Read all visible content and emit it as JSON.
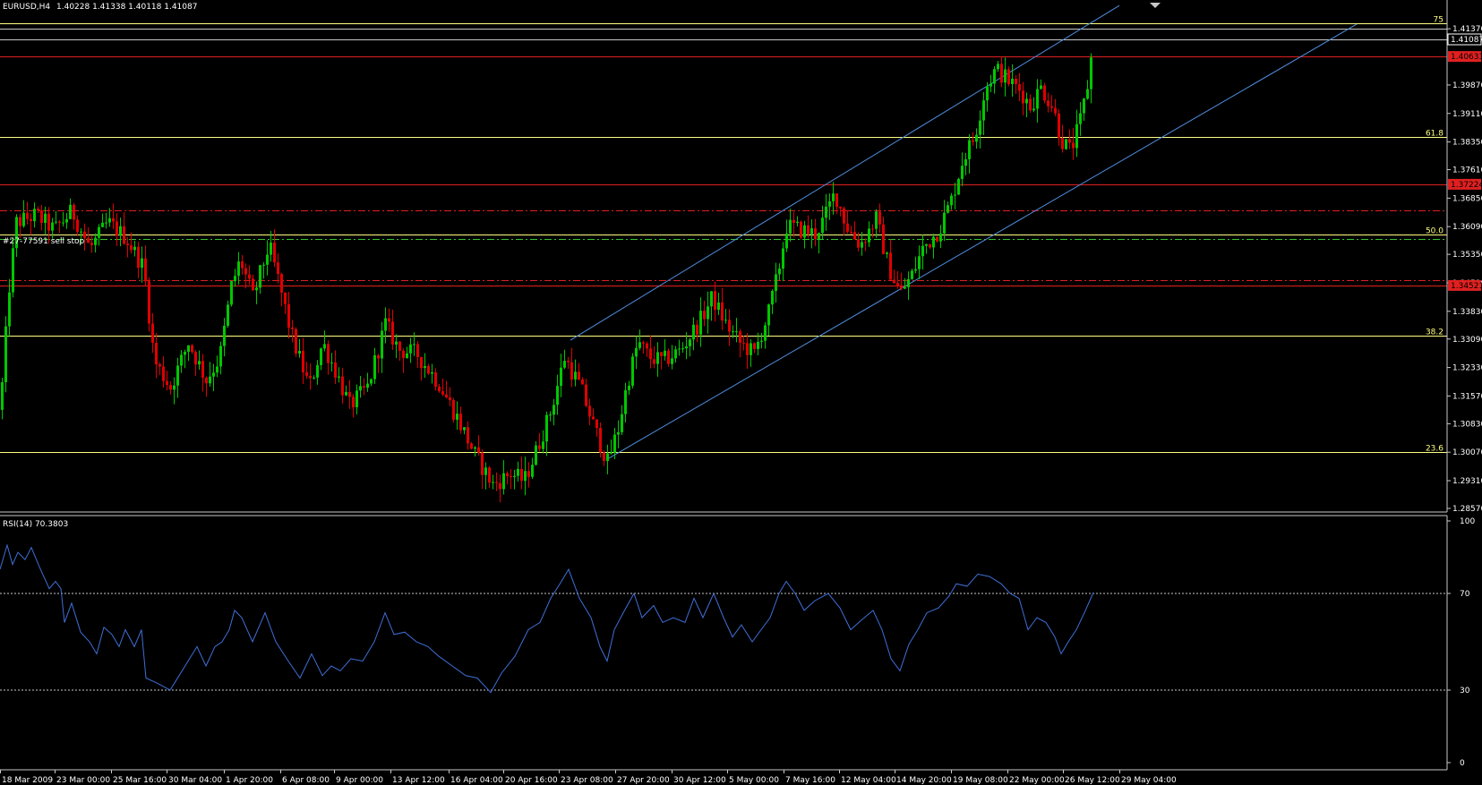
{
  "header": {
    "symbol": "EURUSD,H4",
    "ohlc": "1.40228 1.41338 1.40118 1.41087"
  },
  "colors": {
    "background": "#000000",
    "bull": "#00c800",
    "bear": "#e00000",
    "text": "#ffffff",
    "grid_axis": "#c8c8c8",
    "fibo": "#ffff80",
    "channel": "#4f8fe0",
    "rsi_line": "#3f6fd8",
    "red_level": "#e02020"
  },
  "chart_data": [
    {
      "type": "candlestick",
      "title": "EURUSD,H4",
      "ylim": [
        1.2857,
        1.4166
      ],
      "y_ticks": [
        "1.41370",
        "1.39870",
        "1.39110",
        "1.38350",
        "1.37610",
        "1.36850",
        "1.36090",
        "1.35350",
        "1.34590",
        "1.33830",
        "1.33090",
        "1.32330",
        "1.31570",
        "1.30830",
        "1.30070",
        "1.29310",
        "1.28570"
      ],
      "x_ticks": [
        "18 Mar 2009",
        "23 Mar 00:00",
        "25 Mar 16:00",
        "30 Mar 04:00",
        "1 Apr 20:00",
        "6 Apr 08:00",
        "9 Apr 00:00",
        "13 Apr 12:00",
        "16 Apr 04:00",
        "20 Apr 16:00",
        "23 Apr 08:00",
        "27 Apr 20:00",
        "30 Apr 12:00",
        "5 May 00:00",
        "7 May 16:00",
        "12 May 04:00",
        "14 May 20:00",
        "19 May 08:00",
        "22 May 00:00",
        "26 May 12:00",
        "29 May 04:00"
      ],
      "price_path": [
        [
          0,
          1.312
        ],
        [
          10,
          1.345
        ],
        [
          18,
          1.362
        ],
        [
          40,
          1.364
        ],
        [
          60,
          1.36
        ],
        [
          80,
          1.365
        ],
        [
          100,
          1.355
        ],
        [
          120,
          1.362
        ],
        [
          140,
          1.358
        ],
        [
          160,
          1.35
        ],
        [
          172,
          1.325
        ],
        [
          190,
          1.318
        ],
        [
          210,
          1.33
        ],
        [
          230,
          1.32
        ],
        [
          245,
          1.326
        ],
        [
          258,
          1.345
        ],
        [
          268,
          1.352
        ],
        [
          282,
          1.342
        ],
        [
          300,
          1.356
        ],
        [
          312,
          1.345
        ],
        [
          325,
          1.332
        ],
        [
          345,
          1.318
        ],
        [
          360,
          1.33
        ],
        [
          375,
          1.322
        ],
        [
          390,
          1.313
        ],
        [
          410,
          1.318
        ],
        [
          430,
          1.335
        ],
        [
          445,
          1.328
        ],
        [
          465,
          1.327
        ],
        [
          490,
          1.319
        ],
        [
          510,
          1.31
        ],
        [
          530,
          1.3
        ],
        [
          550,
          1.292
        ],
        [
          570,
          1.295
        ],
        [
          585,
          1.293
        ],
        [
          600,
          1.302
        ],
        [
          615,
          1.312
        ],
        [
          630,
          1.326
        ],
        [
          648,
          1.318
        ],
        [
          662,
          1.308
        ],
        [
          678,
          1.298
        ],
        [
          690,
          1.307
        ],
        [
          700,
          1.319
        ],
        [
          712,
          1.33
        ],
        [
          725,
          1.326
        ],
        [
          740,
          1.325
        ],
        [
          760,
          1.328
        ],
        [
          782,
          1.336
        ],
        [
          795,
          1.342
        ],
        [
          810,
          1.335
        ],
        [
          825,
          1.33
        ],
        [
          842,
          1.327
        ],
        [
          858,
          1.338
        ],
        [
          868,
          1.348
        ],
        [
          878,
          1.361
        ],
        [
          895,
          1.36
        ],
        [
          910,
          1.359
        ],
        [
          920,
          1.363
        ],
        [
          932,
          1.37
        ],
        [
          945,
          1.361
        ],
        [
          960,
          1.356
        ],
        [
          978,
          1.363
        ],
        [
          992,
          1.35
        ],
        [
          1005,
          1.343
        ],
        [
          1018,
          1.348
        ],
        [
          1030,
          1.355
        ],
        [
          1048,
          1.36
        ],
        [
          1062,
          1.368
        ],
        [
          1075,
          1.379
        ],
        [
          1088,
          1.385
        ],
        [
          1100,
          1.398
        ],
        [
          1112,
          1.403
        ],
        [
          1125,
          1.4
        ],
        [
          1140,
          1.397
        ],
        [
          1150,
          1.393
        ],
        [
          1162,
          1.398
        ],
        [
          1175,
          1.393
        ],
        [
          1185,
          1.384
        ],
        [
          1195,
          1.381
        ],
        [
          1205,
          1.388
        ],
        [
          1213,
          1.397
        ],
        [
          1221,
          1.4109
        ]
      ],
      "horizontal_lines": [
        {
          "price": 1.4137,
          "style": "solid",
          "color": "#c8c8c8"
        },
        {
          "price": 1.41087,
          "style": "solid",
          "color": "#c8c8c8",
          "label": "1.41087"
        },
        {
          "price": 1.4063,
          "style": "solid",
          "color": "#e02020",
          "label": "1.40633"
        },
        {
          "price": 1.3722,
          "style": "solid",
          "color": "#e02020",
          "label": "1.37224"
        },
        {
          "price": 1.3652,
          "style": "dashdot",
          "color": "#e02020"
        },
        {
          "price": 1.3575,
          "style": "dashdot",
          "color": "#2ec82e"
        },
        {
          "price": 1.3465,
          "style": "dashdot",
          "color": "#e02020"
        },
        {
          "price": 1.3452,
          "style": "solid",
          "color": "#e02020",
          "label": "1.34521"
        }
      ],
      "fibo_levels": [
        {
          "label": "75",
          "price": 1.4152
        },
        {
          "label": "61.8",
          "price": 1.3848
        },
        {
          "label": "50.0",
          "price": 1.3589
        },
        {
          "label": "38.2",
          "price": 1.3319
        },
        {
          "label": "23.6",
          "price": 1.3007
        }
      ],
      "order_label": "#27-77591 sell stop",
      "channel": {
        "upper": [
          [
            637,
            1.3306
          ],
          [
            1250,
            1.4199
          ]
        ],
        "lower": [
          [
            680,
            1.2991
          ],
          [
            1515,
            1.4149
          ]
        ]
      }
    },
    {
      "type": "line",
      "title": "RSI(14) 70.3803",
      "ylim": [
        0,
        100
      ],
      "y_ticks": [
        "100",
        "70",
        "30",
        "0"
      ],
      "levels": [
        70,
        30
      ],
      "series": [
        {
          "name": "RSI(14)",
          "points": [
            [
              0,
              80
            ],
            [
              8,
              90
            ],
            [
              14,
              82
            ],
            [
              20,
              87
            ],
            [
              28,
              84
            ],
            [
              35,
              89
            ],
            [
              44,
              81
            ],
            [
              55,
              72
            ],
            [
              62,
              75
            ],
            [
              68,
              72
            ],
            [
              72,
              58
            ],
            [
              80,
              66
            ],
            [
              90,
              54
            ],
            [
              100,
              50
            ],
            [
              108,
              45
            ],
            [
              116,
              56
            ],
            [
              125,
              53
            ],
            [
              133,
              48
            ],
            [
              140,
              55
            ],
            [
              150,
              48
            ],
            [
              158,
              55
            ],
            [
              163,
              35
            ],
            [
              175,
              33
            ],
            [
              190,
              30
            ],
            [
              200,
              36
            ],
            [
              210,
              42
            ],
            [
              220,
              48
            ],
            [
              230,
              40
            ],
            [
              240,
              48
            ],
            [
              248,
              50
            ],
            [
              256,
              55
            ],
            [
              262,
              63
            ],
            [
              270,
              60
            ],
            [
              282,
              50
            ],
            [
              296,
              62
            ],
            [
              308,
              50
            ],
            [
              322,
              42
            ],
            [
              335,
              35
            ],
            [
              348,
              45
            ],
            [
              360,
              36
            ],
            [
              370,
              40
            ],
            [
              380,
              38
            ],
            [
              392,
              43
            ],
            [
              405,
              42
            ],
            [
              418,
              50
            ],
            [
              430,
              62
            ],
            [
              440,
              53
            ],
            [
              452,
              54
            ],
            [
              465,
              50
            ],
            [
              478,
              48
            ],
            [
              490,
              44
            ],
            [
              505,
              40
            ],
            [
              520,
              36
            ],
            [
              533,
              35
            ],
            [
              548,
              29
            ],
            [
              560,
              37
            ],
            [
              575,
              44
            ],
            [
              590,
              55
            ],
            [
              603,
              58
            ],
            [
              615,
              68
            ],
            [
              627,
              75
            ],
            [
              635,
              80
            ],
            [
              647,
              68
            ],
            [
              660,
              60
            ],
            [
              670,
              48
            ],
            [
              678,
              42
            ],
            [
              686,
              55
            ],
            [
              696,
              62
            ],
            [
              708,
              70
            ],
            [
              717,
              60
            ],
            [
              730,
              65
            ],
            [
              740,
              58
            ],
            [
              752,
              60
            ],
            [
              765,
              58
            ],
            [
              775,
              68
            ],
            [
              785,
              60
            ],
            [
              797,
              70
            ],
            [
              808,
              60
            ],
            [
              818,
              52
            ],
            [
              828,
              57
            ],
            [
              840,
              50
            ],
            [
              850,
              55
            ],
            [
              860,
              60
            ],
            [
              870,
              70
            ],
            [
              878,
              75
            ],
            [
              888,
              70
            ],
            [
              898,
              63
            ],
            [
              910,
              67
            ],
            [
              925,
              70
            ],
            [
              938,
              64
            ],
            [
              950,
              55
            ],
            [
              962,
              59
            ],
            [
              975,
              63
            ],
            [
              985,
              55
            ],
            [
              995,
              43
            ],
            [
              1005,
              38
            ],
            [
              1015,
              49
            ],
            [
              1025,
              55
            ],
            [
              1035,
              62
            ],
            [
              1048,
              64
            ],
            [
              1060,
              69
            ],
            [
              1068,
              74
            ],
            [
              1080,
              73
            ],
            [
              1092,
              78
            ],
            [
              1105,
              77
            ],
            [
              1118,
              74
            ],
            [
              1128,
              70
            ],
            [
              1138,
              68
            ],
            [
              1148,
              55
            ],
            [
              1158,
              60
            ],
            [
              1168,
              58
            ],
            [
              1178,
              52
            ],
            [
              1185,
              45
            ],
            [
              1193,
              50
            ],
            [
              1202,
              55
            ],
            [
              1211,
              62
            ],
            [
              1221,
              70.38
            ]
          ]
        }
      ]
    }
  ]
}
